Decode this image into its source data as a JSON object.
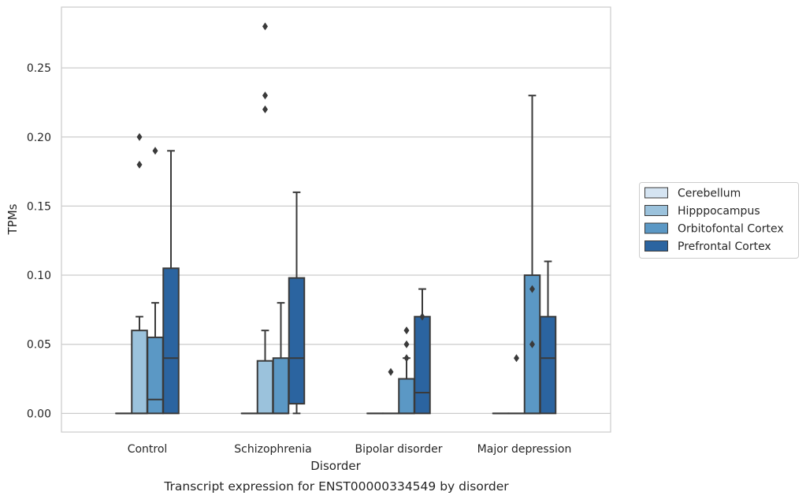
{
  "chart_data": {
    "type": "box",
    "xlabel": "Disorder",
    "ylabel": "TPMs",
    "caption": "Transcript expression for ENST00000334549 by disorder",
    "ylim": [
      -0.0135,
      0.294
    ],
    "yticks": [
      0.0,
      0.05,
      0.1,
      0.15,
      0.2,
      0.25
    ],
    "ytick_labels": [
      "0.00",
      "0.05",
      "0.10",
      "0.15",
      "0.20",
      "0.25"
    ],
    "grid": "horizontal",
    "legend_position": "right",
    "categories": [
      "Control",
      "Schizophrenia",
      "Bipolar disorder",
      "Major depression"
    ],
    "series": [
      {
        "name": "Cerebellum",
        "color": "#d5e4f2",
        "boxes": [
          {
            "q1": 0,
            "median": 0,
            "q3": 0,
            "whislo": 0,
            "whishi": 0,
            "fliers": []
          },
          {
            "q1": 0,
            "median": 0,
            "q3": 0,
            "whislo": 0,
            "whishi": 0,
            "fliers": []
          },
          {
            "q1": 0,
            "median": 0,
            "q3": 0,
            "whislo": 0,
            "whishi": 0,
            "fliers": []
          },
          {
            "q1": 0,
            "median": 0,
            "q3": 0,
            "whislo": 0,
            "whishi": 0,
            "fliers": []
          }
        ]
      },
      {
        "name": "Hipppocampus",
        "color": "#9bc2dc",
        "boxes": [
          {
            "q1": 0,
            "median": 0,
            "q3": 0.06,
            "whislo": 0,
            "whishi": 0.07,
            "fliers": [
              0.18,
              0.2
            ]
          },
          {
            "q1": 0,
            "median": 0,
            "q3": 0.038,
            "whislo": 0,
            "whishi": 0.06,
            "fliers": [
              0.22,
              0.23,
              0.28
            ]
          },
          {
            "q1": 0,
            "median": 0,
            "q3": 0,
            "whislo": 0,
            "whishi": 0,
            "fliers": [
              0.03
            ]
          },
          {
            "q1": 0,
            "median": 0,
            "q3": 0,
            "whislo": 0,
            "whishi": 0,
            "fliers": [
              0.04
            ]
          }
        ]
      },
      {
        "name": "Orbitofontal Cortex",
        "color": "#5b98c5",
        "boxes": [
          {
            "q1": 0,
            "median": 0.01,
            "q3": 0.055,
            "whislo": 0,
            "whishi": 0.08,
            "fliers": [
              0.19
            ]
          },
          {
            "q1": 0,
            "median": 0,
            "q3": 0.04,
            "whislo": 0,
            "whishi": 0.08,
            "fliers": []
          },
          {
            "q1": 0,
            "median": 0,
            "q3": 0.025,
            "whislo": 0,
            "whishi": 0.04,
            "fliers": [
              0.04,
              0.05,
              0.06
            ]
          },
          {
            "q1": 0,
            "median": 0,
            "q3": 0.1,
            "whislo": 0,
            "whishi": 0.23,
            "fliers": [
              0.05,
              0.09
            ]
          }
        ]
      },
      {
        "name": "Prefrontal Cortex",
        "color": "#2b64a0",
        "boxes": [
          {
            "q1": 0,
            "median": 0.04,
            "q3": 0.105,
            "whislo": 0,
            "whishi": 0.19,
            "fliers": []
          },
          {
            "q1": 0.007,
            "median": 0.04,
            "q3": 0.098,
            "whislo": 0,
            "whishi": 0.16,
            "fliers": []
          },
          {
            "q1": 0,
            "median": 0.015,
            "q3": 0.07,
            "whislo": 0,
            "whishi": 0.09,
            "fliers": [
              0.07
            ]
          },
          {
            "q1": 0,
            "median": 0.04,
            "q3": 0.07,
            "whislo": 0,
            "whishi": 0.11,
            "fliers": []
          }
        ]
      }
    ]
  }
}
